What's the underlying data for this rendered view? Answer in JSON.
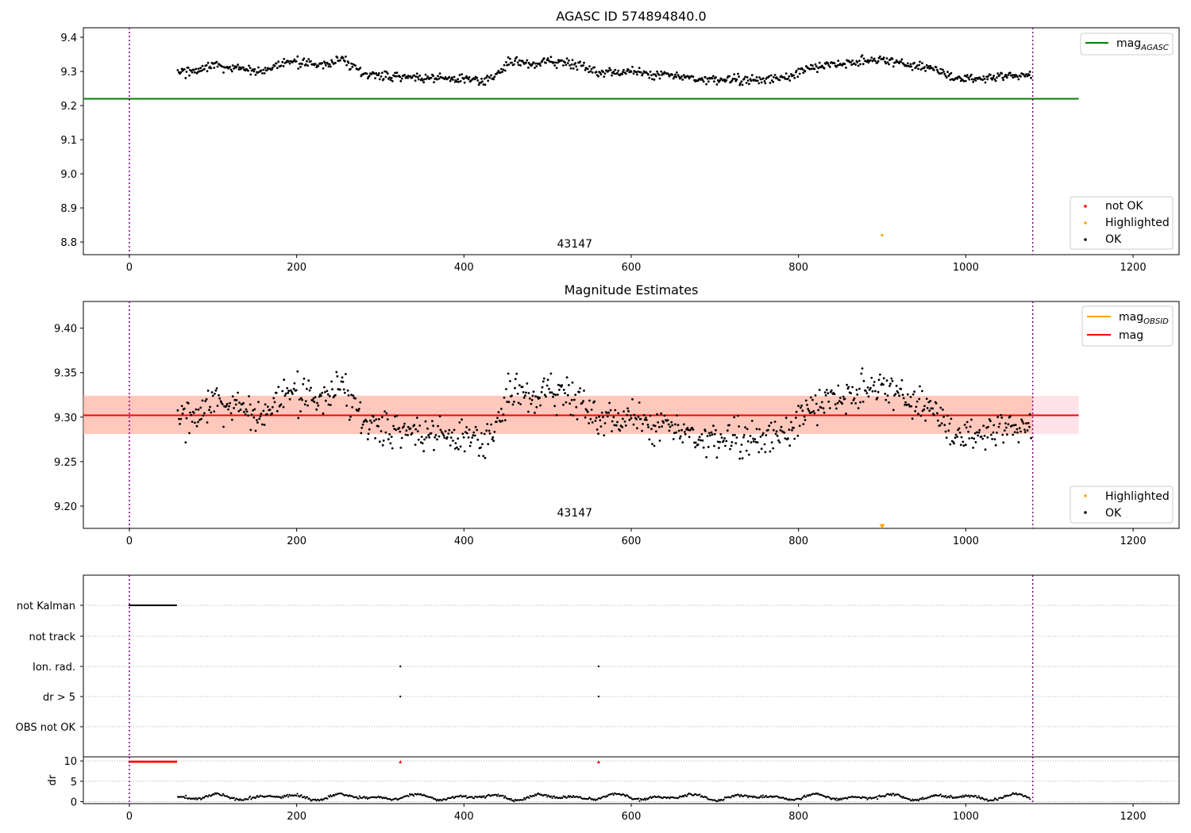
{
  "chart_data": [
    {
      "type": "scatter",
      "title": "AGASC ID 574894840.0",
      "xlim": [
        -55,
        1255
      ],
      "ylim": [
        8.763,
        9.428
      ],
      "xticks": [
        "0",
        "200",
        "400",
        "600",
        "800",
        "1000",
        "1200"
      ],
      "yticks": [
        "8.8",
        "8.9",
        "9.0",
        "9.1",
        "9.2",
        "9.3",
        "9.4"
      ],
      "annotation": {
        "text": "43147",
        "x": 540,
        "y": 8.8
      },
      "vlines": [
        0,
        1080
      ],
      "hline": {
        "name": "mag_AGASC",
        "y": 9.22,
        "x": [
          -55,
          1135
        ],
        "color": "#008000"
      },
      "series": [
        {
          "name": "OK",
          "color": "#000000",
          "x_range": [
            58,
            1078
          ],
          "n": 900,
          "y_anchor_x": [
            58,
            80,
            100,
            125,
            160,
            190,
            215,
            240,
            255,
            280,
            320,
            360,
            400,
            420,
            440,
            455,
            480,
            500,
            540,
            560,
            600,
            640,
            680,
            720,
            760,
            790,
            810,
            840,
            870,
            900,
            930,
            960,
            990,
            1020,
            1050,
            1078
          ],
          "y_anchor": [
            9.295,
            9.305,
            9.32,
            9.305,
            9.3,
            9.33,
            9.325,
            9.315,
            9.34,
            9.29,
            9.285,
            9.28,
            9.28,
            9.27,
            9.29,
            9.33,
            9.32,
            9.33,
            9.32,
            9.295,
            9.3,
            9.29,
            9.28,
            9.275,
            9.275,
            9.285,
            9.31,
            9.32,
            9.33,
            9.335,
            9.32,
            9.31,
            9.28,
            9.275,
            9.285,
            9.29
          ],
          "noise": 0.011
        },
        {
          "name": "Highlighted",
          "color": "#ffa500",
          "points": [
            [
              900,
              8.82
            ]
          ]
        }
      ],
      "legend_upper": {
        "position": "upper right",
        "entries": [
          {
            "name": "mag",
            "sub": "AGASC",
            "color": "#008000"
          }
        ]
      },
      "legend_lower": {
        "position": "lower right",
        "entries": [
          {
            "name": "not OK",
            "color": "#ff0000"
          },
          {
            "name": "Highlighted",
            "color": "#ffa500"
          },
          {
            "name": "OK",
            "color": "#000000"
          }
        ]
      }
    },
    {
      "type": "scatter",
      "title": "Magnitude Estimates",
      "xlim": [
        -55,
        1255
      ],
      "ylim": [
        9.175,
        9.43
      ],
      "xticks": [
        "0",
        "200",
        "400",
        "600",
        "800",
        "1000",
        "1200"
      ],
      "yticks": [
        "9.20",
        "9.25",
        "9.30",
        "9.35",
        "9.40"
      ],
      "annotation": {
        "text": "43147",
        "x": 540,
        "y": 9.185
      },
      "vlines": [
        0,
        1080
      ],
      "band": {
        "y": [
          9.281,
          9.324
        ],
        "x": [
          -55,
          1135
        ]
      },
      "hline": {
        "name": "mag",
        "y": 9.302,
        "x": [
          -55,
          1135
        ],
        "color": "#ff0000"
      },
      "series": [
        {
          "name": "OK",
          "color": "#000000",
          "x_range": [
            58,
            1078
          ],
          "n": 900,
          "noise": 0.013
        },
        {
          "name": "Highlighted",
          "color": "#ffa500",
          "points": [
            [
              900,
              9.178
            ]
          ]
        }
      ],
      "legend_upper": {
        "position": "upper right",
        "entries": [
          {
            "name": "mag",
            "sub": "OBSID",
            "color": "#ffa500"
          },
          {
            "name": "mag",
            "sub": "",
            "color": "#ff0000"
          }
        ]
      },
      "legend_lower": {
        "position": "lower right",
        "entries": [
          {
            "name": "Highlighted",
            "color": "#ffa500"
          },
          {
            "name": "OK",
            "color": "#000000"
          }
        ]
      }
    },
    {
      "type": "scatter",
      "xlim": [
        -55,
        1255
      ],
      "categories": [
        "not Kalman",
        "not track",
        "Ion. rad.",
        "dr > 5",
        "OBS not OK"
      ],
      "vlines": [
        0,
        1080
      ],
      "flags": {
        "not Kalman": {
          "x_range": [
            0,
            56
          ],
          "step": 1
        },
        "not track": [],
        "Ion. rad.": [
          324,
          561
        ],
        "dr > 5": [
          324,
          561
        ],
        "OBS not OK": []
      }
    },
    {
      "type": "line",
      "ylabel": "dr",
      "xlim": [
        -55,
        1255
      ],
      "ylim": [
        -0.5,
        11
      ],
      "xticks": [
        "0",
        "200",
        "400",
        "600",
        "800",
        "1000",
        "1200"
      ],
      "yticks": [
        "0",
        "5",
        "10"
      ],
      "vlines": [
        0,
        1080
      ],
      "red_marks": {
        "y": 9.8,
        "x_range": [
          0,
          56
        ],
        "extra_x": [
          324,
          561
        ]
      },
      "series": [
        {
          "name": "dr",
          "color": "#000000",
          "x_range": [
            58,
            1078
          ],
          "mean": 1.1,
          "amplitude": 0.8
        }
      ]
    }
  ]
}
